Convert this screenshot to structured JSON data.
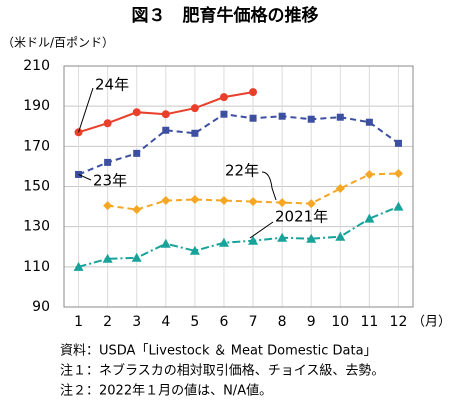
{
  "chart_data": {
    "type": "line",
    "title": "図３　肥育牛価格の推移",
    "y_label": "（米ドル/百ポンド）",
    "x_label": "（月）",
    "categories": [
      "1",
      "2",
      "3",
      "4",
      "5",
      "6",
      "7",
      "8",
      "9",
      "10",
      "11",
      "12"
    ],
    "ylim": [
      90,
      210
    ],
    "yticks": [
      90,
      110,
      130,
      150,
      170,
      190,
      210
    ],
    "grid": true,
    "series": [
      {
        "name": "24年",
        "color": "#e8402a",
        "style": "solid",
        "marker": "circle",
        "values": [
          177,
          181.5,
          187,
          186,
          189,
          194.5,
          197,
          null,
          null,
          null,
          null,
          null
        ]
      },
      {
        "name": "23年",
        "color": "#3d4fa0",
        "style": "dashed",
        "marker": "square",
        "values": [
          156,
          162,
          166.5,
          178,
          176.5,
          186,
          184,
          185,
          183.5,
          184.5,
          182,
          171.5
        ]
      },
      {
        "name": "22年",
        "color": "#f5a623",
        "style": "dashed",
        "marker": "diamond",
        "values": [
          null,
          140.5,
          138.5,
          143,
          143.5,
          143,
          142.5,
          142,
          141.5,
          149,
          156,
          156.5
        ]
      },
      {
        "name": "2021年",
        "color": "#17a39a",
        "style": "dashdot",
        "marker": "triangle",
        "values": [
          110,
          114,
          114.5,
          121.5,
          118,
          122,
          123,
          124.5,
          124,
          125,
          134,
          140
        ]
      }
    ],
    "notes": [
      "資料：USDA「Livestock ＆ Meat Domestic Data」",
      "注１：ネブラスカの相対取引価格、チョイス級、去勢。",
      "注２：2022年１月の値は、N/A値。"
    ]
  }
}
